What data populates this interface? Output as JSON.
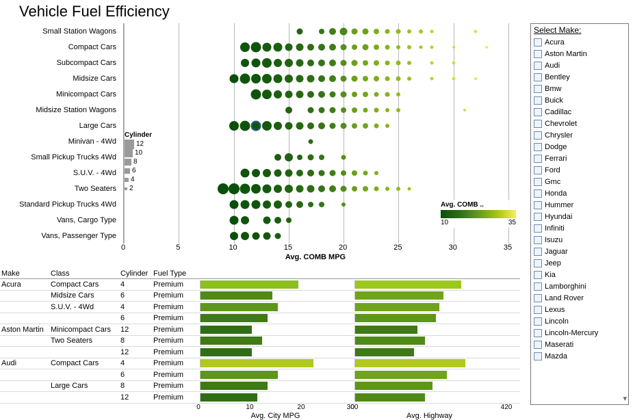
{
  "title": "Vehicle Fuel Efficiency",
  "scatter": {
    "type": "bubble-strip",
    "x_title": "Avg. COMB MPG",
    "xlim": [
      0,
      35
    ],
    "xticks": [
      0,
      5,
      10,
      15,
      20,
      25,
      30,
      35
    ],
    "grid_color": "#b8b8b8",
    "categories": [
      "Small Station Wagons",
      "Compact Cars",
      "Subcompact Cars",
      "Midsize Cars",
      "Minicompact Cars",
      "Midsize Station Wagons",
      "Large Cars",
      "Minivan - 4Wd",
      "Small Pickup Trucks 4Wd",
      "S.U.V. - 4Wd",
      "Two Seaters",
      "Standard Pickup Trucks 4Wd",
      "Vans, Cargo Type",
      "Vans, Passenger Type"
    ],
    "color_scale": {
      "min": 10,
      "max": 35,
      "label": "Avg. COMB ..",
      "stops": [
        "#0a4f0a",
        "#2f6e17",
        "#6fa41c",
        "#b1c91a",
        "#f5f05a"
      ]
    },
    "size_legend": {
      "label": "Cylinder",
      "values": [
        12,
        10,
        8,
        6,
        4,
        2
      ],
      "sizes": [
        14,
        12,
        10,
        8,
        6,
        4
      ]
    },
    "rows": [
      {
        "pts": [
          {
            "x": 16,
            "s": 9,
            "c": 14
          },
          {
            "x": 18,
            "s": 8,
            "c": 17
          },
          {
            "x": 19,
            "s": 10,
            "c": 18
          },
          {
            "x": 20,
            "s": 11,
            "c": 19
          },
          {
            "x": 21,
            "s": 9,
            "c": 22
          },
          {
            "x": 22,
            "s": 9,
            "c": 22
          },
          {
            "x": 23,
            "s": 8,
            "c": 24
          },
          {
            "x": 24,
            "s": 7,
            "c": 25
          },
          {
            "x": 25,
            "s": 7,
            "c": 26
          },
          {
            "x": 26,
            "s": 6,
            "c": 27
          },
          {
            "x": 27,
            "s": 6,
            "c": 28
          },
          {
            "x": 28,
            "s": 5,
            "c": 30
          },
          {
            "x": 32,
            "s": 5,
            "c": 33
          }
        ]
      },
      {
        "pts": [
          {
            "x": 11,
            "s": 14,
            "c": 11
          },
          {
            "x": 12,
            "s": 15,
            "c": 11
          },
          {
            "x": 13,
            "s": 13,
            "c": 12
          },
          {
            "x": 14,
            "s": 13,
            "c": 13
          },
          {
            "x": 15,
            "s": 11,
            "c": 14
          },
          {
            "x": 16,
            "s": 11,
            "c": 15
          },
          {
            "x": 17,
            "s": 10,
            "c": 16
          },
          {
            "x": 18,
            "s": 10,
            "c": 17
          },
          {
            "x": 19,
            "s": 10,
            "c": 18
          },
          {
            "x": 20,
            "s": 9,
            "c": 20
          },
          {
            "x": 21,
            "s": 8,
            "c": 22
          },
          {
            "x": 22,
            "s": 9,
            "c": 22
          },
          {
            "x": 23,
            "s": 8,
            "c": 24
          },
          {
            "x": 24,
            "s": 7,
            "c": 25
          },
          {
            "x": 25,
            "s": 6,
            "c": 26
          },
          {
            "x": 26,
            "s": 6,
            "c": 27
          },
          {
            "x": 27,
            "s": 5,
            "c": 28
          },
          {
            "x": 28,
            "s": 5,
            "c": 30
          },
          {
            "x": 30,
            "s": 4,
            "c": 32
          },
          {
            "x": 33,
            "s": 4,
            "c": 34
          }
        ]
      },
      {
        "pts": [
          {
            "x": 11,
            "s": 12,
            "c": 11
          },
          {
            "x": 12,
            "s": 13,
            "c": 11
          },
          {
            "x": 13,
            "s": 14,
            "c": 12
          },
          {
            "x": 14,
            "s": 12,
            "c": 13
          },
          {
            "x": 15,
            "s": 12,
            "c": 14
          },
          {
            "x": 16,
            "s": 11,
            "c": 15
          },
          {
            "x": 17,
            "s": 10,
            "c": 16
          },
          {
            "x": 18,
            "s": 10,
            "c": 17
          },
          {
            "x": 19,
            "s": 10,
            "c": 18
          },
          {
            "x": 20,
            "s": 9,
            "c": 20
          },
          {
            "x": 21,
            "s": 9,
            "c": 22
          },
          {
            "x": 22,
            "s": 8,
            "c": 23
          },
          {
            "x": 23,
            "s": 8,
            "c": 24
          },
          {
            "x": 24,
            "s": 7,
            "c": 25
          },
          {
            "x": 25,
            "s": 7,
            "c": 26
          },
          {
            "x": 26,
            "s": 6,
            "c": 27
          },
          {
            "x": 28,
            "s": 5,
            "c": 30
          },
          {
            "x": 30,
            "s": 5,
            "c": 32
          }
        ]
      },
      {
        "pts": [
          {
            "x": 10,
            "s": 13,
            "c": 10
          },
          {
            "x": 11,
            "s": 15,
            "c": 11
          },
          {
            "x": 12,
            "s": 14,
            "c": 11
          },
          {
            "x": 13,
            "s": 14,
            "c": 12
          },
          {
            "x": 14,
            "s": 13,
            "c": 13
          },
          {
            "x": 15,
            "s": 12,
            "c": 14
          },
          {
            "x": 16,
            "s": 11,
            "c": 15
          },
          {
            "x": 17,
            "s": 11,
            "c": 16
          },
          {
            "x": 18,
            "s": 10,
            "c": 17
          },
          {
            "x": 19,
            "s": 10,
            "c": 18
          },
          {
            "x": 20,
            "s": 9,
            "c": 20
          },
          {
            "x": 21,
            "s": 9,
            "c": 22
          },
          {
            "x": 22,
            "s": 8,
            "c": 23
          },
          {
            "x": 23,
            "s": 8,
            "c": 24
          },
          {
            "x": 24,
            "s": 7,
            "c": 25
          },
          {
            "x": 25,
            "s": 7,
            "c": 26
          },
          {
            "x": 26,
            "s": 6,
            "c": 27
          },
          {
            "x": 28,
            "s": 5,
            "c": 30
          },
          {
            "x": 30,
            "s": 5,
            "c": 32
          },
          {
            "x": 32,
            "s": 4,
            "c": 33
          }
        ]
      },
      {
        "pts": [
          {
            "x": 12,
            "s": 15,
            "c": 11
          },
          {
            "x": 13,
            "s": 14,
            "c": 12
          },
          {
            "x": 14,
            "s": 12,
            "c": 13
          },
          {
            "x": 15,
            "s": 11,
            "c": 14
          },
          {
            "x": 16,
            "s": 11,
            "c": 15
          },
          {
            "x": 17,
            "s": 10,
            "c": 16
          },
          {
            "x": 18,
            "s": 10,
            "c": 17
          },
          {
            "x": 19,
            "s": 9,
            "c": 18
          },
          {
            "x": 20,
            "s": 9,
            "c": 20
          },
          {
            "x": 21,
            "s": 8,
            "c": 22
          },
          {
            "x": 22,
            "s": 8,
            "c": 23
          },
          {
            "x": 23,
            "s": 7,
            "c": 24
          },
          {
            "x": 24,
            "s": 7,
            "c": 25
          },
          {
            "x": 25,
            "s": 6,
            "c": 26
          }
        ]
      },
      {
        "pts": [
          {
            "x": 15,
            "s": 10,
            "c": 14
          },
          {
            "x": 17,
            "s": 9,
            "c": 16
          },
          {
            "x": 18,
            "s": 9,
            "c": 17
          },
          {
            "x": 19,
            "s": 9,
            "c": 18
          },
          {
            "x": 20,
            "s": 8,
            "c": 20
          },
          {
            "x": 21,
            "s": 8,
            "c": 22
          },
          {
            "x": 22,
            "s": 7,
            "c": 23
          },
          {
            "x": 23,
            "s": 7,
            "c": 24
          },
          {
            "x": 24,
            "s": 6,
            "c": 25
          },
          {
            "x": 25,
            "s": 6,
            "c": 26
          },
          {
            "x": 31,
            "s": 4,
            "c": 32
          }
        ]
      },
      {
        "pts": [
          {
            "x": 10,
            "s": 14,
            "c": 10
          },
          {
            "x": 11,
            "s": 15,
            "c": 11
          },
          {
            "x": 12,
            "s": 15,
            "c": 11,
            "ring": true
          },
          {
            "x": 13,
            "s": 14,
            "c": 12
          },
          {
            "x": 14,
            "s": 12,
            "c": 13
          },
          {
            "x": 15,
            "s": 11,
            "c": 14
          },
          {
            "x": 16,
            "s": 11,
            "c": 15
          },
          {
            "x": 17,
            "s": 10,
            "c": 16
          },
          {
            "x": 18,
            "s": 10,
            "c": 17
          },
          {
            "x": 19,
            "s": 9,
            "c": 18
          },
          {
            "x": 20,
            "s": 9,
            "c": 20
          },
          {
            "x": 21,
            "s": 8,
            "c": 22
          },
          {
            "x": 22,
            "s": 8,
            "c": 23
          },
          {
            "x": 23,
            "s": 7,
            "c": 24
          },
          {
            "x": 24,
            "s": 6,
            "c": 25
          }
        ]
      },
      {
        "pts": [
          {
            "x": 17,
            "s": 7,
            "c": 16
          }
        ]
      },
      {
        "pts": [
          {
            "x": 14,
            "s": 10,
            "c": 13
          },
          {
            "x": 15,
            "s": 12,
            "c": 14
          },
          {
            "x": 16,
            "s": 8,
            "c": 15
          },
          {
            "x": 17,
            "s": 9,
            "c": 16
          },
          {
            "x": 18,
            "s": 8,
            "c": 17
          },
          {
            "x": 20,
            "s": 7,
            "c": 20
          }
        ]
      },
      {
        "pts": [
          {
            "x": 11,
            "s": 13,
            "c": 11
          },
          {
            "x": 12,
            "s": 12,
            "c": 11
          },
          {
            "x": 13,
            "s": 12,
            "c": 12
          },
          {
            "x": 14,
            "s": 11,
            "c": 13
          },
          {
            "x": 15,
            "s": 11,
            "c": 14
          },
          {
            "x": 16,
            "s": 10,
            "c": 15
          },
          {
            "x": 17,
            "s": 10,
            "c": 16
          },
          {
            "x": 18,
            "s": 9,
            "c": 17
          },
          {
            "x": 19,
            "s": 9,
            "c": 18
          },
          {
            "x": 20,
            "s": 8,
            "c": 20
          },
          {
            "x": 21,
            "s": 8,
            "c": 22
          },
          {
            "x": 22,
            "s": 7,
            "c": 23
          },
          {
            "x": 23,
            "s": 6,
            "c": 24
          }
        ]
      },
      {
        "pts": [
          {
            "x": 9,
            "s": 16,
            "c": 10
          },
          {
            "x": 10,
            "s": 16,
            "c": 10
          },
          {
            "x": 11,
            "s": 15,
            "c": 11
          },
          {
            "x": 12,
            "s": 14,
            "c": 11
          },
          {
            "x": 13,
            "s": 13,
            "c": 12
          },
          {
            "x": 14,
            "s": 12,
            "c": 13
          },
          {
            "x": 15,
            "s": 12,
            "c": 14
          },
          {
            "x": 16,
            "s": 11,
            "c": 15
          },
          {
            "x": 17,
            "s": 11,
            "c": 16
          },
          {
            "x": 18,
            "s": 10,
            "c": 17
          },
          {
            "x": 19,
            "s": 10,
            "c": 18
          },
          {
            "x": 20,
            "s": 9,
            "c": 20
          },
          {
            "x": 21,
            "s": 8,
            "c": 22
          },
          {
            "x": 22,
            "s": 8,
            "c": 23
          },
          {
            "x": 23,
            "s": 7,
            "c": 24
          },
          {
            "x": 24,
            "s": 6,
            "c": 25
          },
          {
            "x": 25,
            "s": 6,
            "c": 26
          },
          {
            "x": 26,
            "s": 5,
            "c": 27
          }
        ]
      },
      {
        "pts": [
          {
            "x": 10,
            "s": 13,
            "c": 10
          },
          {
            "x": 11,
            "s": 13,
            "c": 11
          },
          {
            "x": 12,
            "s": 13,
            "c": 11
          },
          {
            "x": 13,
            "s": 12,
            "c": 12
          },
          {
            "x": 14,
            "s": 12,
            "c": 13
          },
          {
            "x": 15,
            "s": 10,
            "c": 14
          },
          {
            "x": 16,
            "s": 10,
            "c": 15
          },
          {
            "x": 17,
            "s": 8,
            "c": 16
          },
          {
            "x": 18,
            "s": 8,
            "c": 17
          },
          {
            "x": 20,
            "s": 6,
            "c": 20
          }
        ]
      },
      {
        "pts": [
          {
            "x": 10,
            "s": 13,
            "c": 10
          },
          {
            "x": 11,
            "s": 12,
            "c": 11
          },
          {
            "x": 13,
            "s": 11,
            "c": 12
          },
          {
            "x": 14,
            "s": 10,
            "c": 13
          },
          {
            "x": 15,
            "s": 8,
            "c": 14
          }
        ]
      },
      {
        "pts": [
          {
            "x": 10,
            "s": 12,
            "c": 10
          },
          {
            "x": 11,
            "s": 12,
            "c": 11
          },
          {
            "x": 12,
            "s": 11,
            "c": 11
          },
          {
            "x": 13,
            "s": 11,
            "c": 12
          },
          {
            "x": 14,
            "s": 9,
            "c": 13
          }
        ]
      }
    ]
  },
  "table": {
    "headers": [
      "Make",
      "Class",
      "Cylinder",
      "Fuel Type"
    ],
    "bar_headers": [
      "Avg. City MPG",
      "Avg. Highway"
    ],
    "city_axis": {
      "max": 30,
      "ticks": [
        0,
        10,
        20,
        30
      ],
      "last_label": "300"
    },
    "hwy_axis": {
      "max": 42,
      "ticks": [
        0,
        42
      ],
      "first_label": "0",
      "last_label": "420"
    },
    "rows": [
      {
        "make": "Acura",
        "class": "Compact Cars",
        "cyl": 4,
        "fuel": "Premium",
        "city": 19,
        "hwy": 29,
        "cc": "#8cbf1f",
        "ch": "#9cc81e"
      },
      {
        "make": "",
        "class": "Midsize Cars",
        "cyl": 6,
        "fuel": "Premium",
        "city": 14,
        "hwy": 24,
        "cc": "#4f8a18",
        "ch": "#6fa41c"
      },
      {
        "make": "",
        "class": "S.U.V. - 4Wd",
        "cyl": 4,
        "fuel": "Premium",
        "city": 15,
        "hwy": 23,
        "cc": "#5d9619",
        "ch": "#6fa41c"
      },
      {
        "make": "",
        "class": "",
        "cyl": 6,
        "fuel": "Premium",
        "city": 13,
        "hwy": 22,
        "cc": "#3f7a16",
        "ch": "#5d9619"
      },
      {
        "make": "Aston Martin",
        "class": "Minicompact Cars",
        "cyl": 12,
        "fuel": "Premium",
        "city": 10,
        "hwy": 17,
        "cc": "#2f6e17",
        "ch": "#3f7a16"
      },
      {
        "make": "",
        "class": "Two Seaters",
        "cyl": 8,
        "fuel": "Premium",
        "city": 12,
        "hwy": 19,
        "cc": "#3f7a16",
        "ch": "#4f8a18"
      },
      {
        "make": "",
        "class": "",
        "cyl": 12,
        "fuel": "Premium",
        "city": 10,
        "hwy": 16,
        "cc": "#2f6e17",
        "ch": "#3f7a16"
      },
      {
        "make": "Audi",
        "class": "Compact Cars",
        "cyl": 4,
        "fuel": "Premium",
        "city": 22,
        "hwy": 30,
        "cc": "#b1c91a",
        "ch": "#b1c91a"
      },
      {
        "make": "",
        "class": "",
        "cyl": 6,
        "fuel": "Premium",
        "city": 15,
        "hwy": 25,
        "cc": "#5d9619",
        "ch": "#6fa41c"
      },
      {
        "make": "",
        "class": "Large Cars",
        "cyl": 8,
        "fuel": "Premium",
        "city": 13,
        "hwy": 21,
        "cc": "#3f7a16",
        "ch": "#5d9619"
      },
      {
        "make": "",
        "class": "",
        "cyl": 12,
        "fuel": "Premium",
        "city": 11,
        "hwy": 19,
        "cc": "#2f6e17",
        "ch": "#4f8a18"
      }
    ]
  },
  "filter": {
    "title": "Select Make:",
    "items": [
      "Acura",
      "Aston Martin",
      "Audi",
      "Bentley",
      "Bmw",
      "Buick",
      "Cadillac",
      "Chevrolet",
      "Chrysler",
      "Dodge",
      "Ferrari",
      "Ford",
      "Gmc",
      "Honda",
      "Hummer",
      "Hyundai",
      "Infiniti",
      "Isuzu",
      "Jaguar",
      "Jeep",
      "Kia",
      "Lamborghini",
      "Land Rover",
      "Lexus",
      "Lincoln",
      "Lincoln-Mercury",
      "Maserati",
      "Mazda"
    ]
  }
}
